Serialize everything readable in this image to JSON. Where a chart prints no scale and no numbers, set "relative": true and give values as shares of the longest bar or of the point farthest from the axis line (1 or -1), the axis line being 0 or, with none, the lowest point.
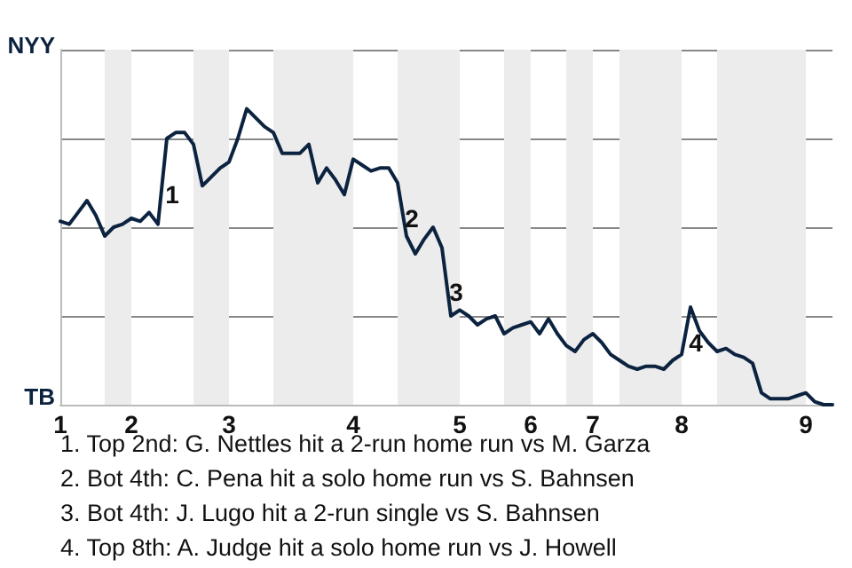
{
  "chart_data": {
    "type": "line",
    "relative": true,
    "categories": [
      "1",
      null,
      null,
      null,
      null,
      null,
      null,
      null,
      "2",
      null,
      null,
      null,
      null,
      null,
      null,
      null,
      null,
      null,
      null,
      "3",
      null,
      null,
      null,
      null,
      null,
      null,
      null,
      null,
      null,
      null,
      null,
      null,
      null,
      "4",
      null,
      null,
      null,
      null,
      null,
      null,
      null,
      null,
      null,
      null,
      null,
      "5",
      null,
      null,
      null,
      null,
      null,
      null,
      null,
      "6",
      null,
      null,
      null,
      null,
      null,
      null,
      "7",
      null,
      null,
      null,
      null,
      null,
      null,
      null,
      null,
      null,
      "8",
      null,
      null,
      null,
      null,
      null,
      null,
      null,
      null,
      null,
      null,
      null,
      null,
      null,
      "9",
      null,
      null,
      null
    ],
    "series": [
      {
        "color": "#0c2340",
        "values": [
          0.62,
          0.61,
          0.65,
          0.69,
          0.64,
          0.57,
          0.6,
          0.61,
          0.63,
          0.62,
          0.65,
          0.61,
          0.9,
          0.92,
          0.92,
          0.88,
          0.74,
          0.77,
          0.8,
          0.82,
          0.9,
          1,
          0.97,
          0.94,
          0.92,
          0.85,
          0.85,
          0.85,
          0.88,
          0.75,
          0.8,
          0.76,
          0.71,
          0.83,
          0.81,
          0.79,
          0.8,
          0.8,
          0.75,
          0.57,
          0.51,
          0.56,
          0.6,
          0.53,
          0.3,
          0.32,
          0.3,
          0.27,
          0.29,
          0.3,
          0.24,
          0.26,
          0.27,
          0.28,
          0.24,
          0.29,
          0.24,
          0.2,
          0.18,
          0.22,
          0.24,
          0.21,
          0.17,
          0.15,
          0.13,
          0.12,
          0.13,
          0.13,
          0.12,
          0.15,
          0.17,
          0.33,
          0.25,
          0.21,
          0.18,
          0.19,
          0.17,
          0.16,
          0.14,
          0.04,
          0.02,
          0.02,
          0.02,
          0.03,
          0.04,
          0.01,
          0,
          0
        ]
      }
    ],
    "grid": "y",
    "annotations": [
      "1",
      "2",
      "3",
      "4",
      "NYY",
      "TB",
      "1. Top 2nd: G. Nettles hit a 2-run home run vs M. Garza",
      "2. Bot 4th: C. Pena hit a solo home run vs S. Bahnsen",
      "3. Bot 4th: J. Lugo hit a 2-run single vs S. Bahnsen",
      "4. Top 8th: A. Judge hit a solo home run vs J. Howell"
    ],
    "marker": "none",
    "line_style": "solid"
  }
}
